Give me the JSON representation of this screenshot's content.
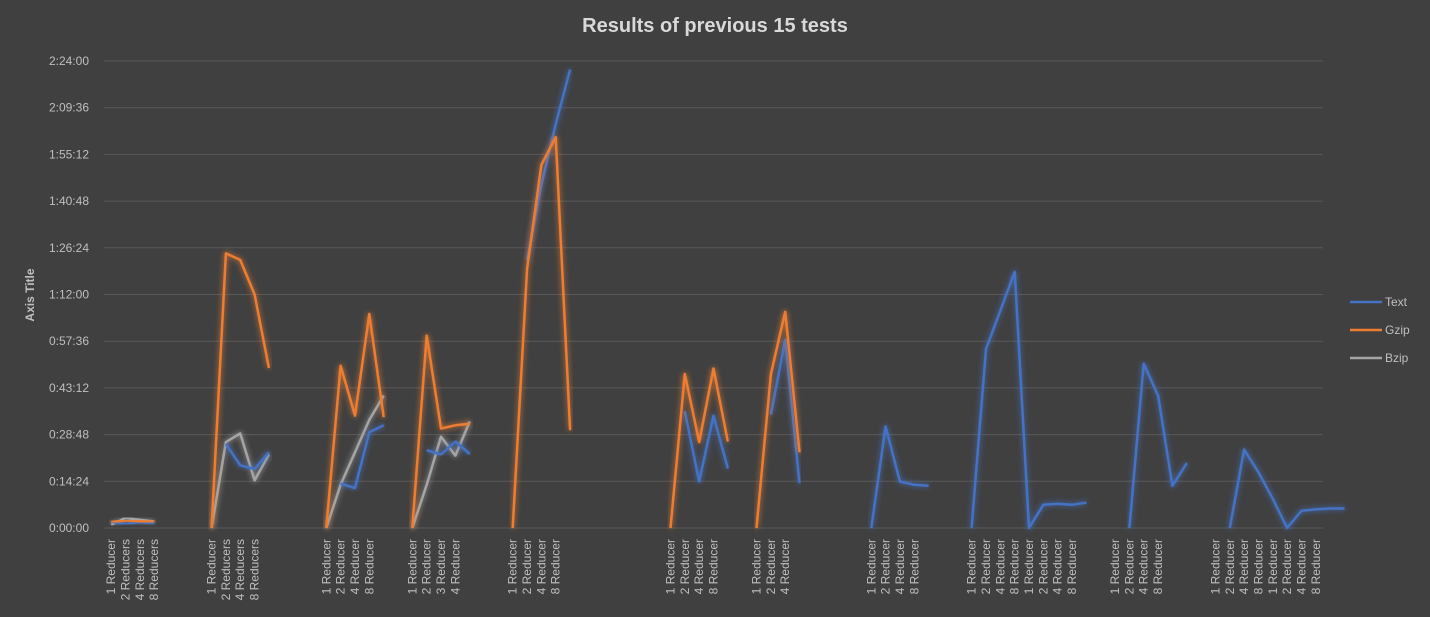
{
  "colors": {
    "background": "#404040",
    "grid": "#595959",
    "text": "#bfbfbf",
    "title": "#d9d9d9"
  },
  "chart_data": {
    "type": "line",
    "title": "Results of previous 15 tests",
    "xlabel": "",
    "ylabel": "Axis Title",
    "y_unit": "h:mm:ss",
    "y_ticks": [
      "0:00:00",
      "0:14:24",
      "0:28:48",
      "0:43:12",
      "0:57:36",
      "1:12:00",
      "1:26:24",
      "1:40:48",
      "1:55:12",
      "2:09:36",
      "2:24:00"
    ],
    "ylim_seconds": [
      0,
      8640
    ],
    "grid": true,
    "legend_position": "right",
    "series": [
      {
        "name": "Text",
        "color": "#4472c4"
      },
      {
        "name": "Gzip",
        "color": "#ed7d31"
      },
      {
        "name": "Bzip",
        "color": "#a5a5a5"
      }
    ],
    "categories": [
      "1 Reducer",
      "2 Reducers",
      "4 Reducers",
      "8 Reducers",
      "",
      "",
      "",
      "1 Reducer",
      "2 Reducers",
      "4 Reducers",
      "8 Reducers",
      "",
      "",
      "",
      "",
      "1 Reducer",
      "2 Reducer",
      "4 Reducer",
      "8 Reducer",
      "",
      "",
      "1 Reducer",
      "2 Reducer",
      "3 Reducer",
      "4 Reducer",
      "",
      "",
      "",
      "1 Reducer",
      "2 Reducer",
      "4 Reducer",
      "8 Reducer",
      "",
      "",
      "",
      "",
      "",
      "",
      "",
      "1 Reducer",
      "2 Reducer",
      "4 Reducer",
      "8 Reducer",
      "",
      "",
      "1 Reducer",
      "2 Reducer",
      "4 Reducer",
      "",
      "",
      "",
      "",
      "",
      "1 Reducer",
      "2 Reducer",
      "4 Reducer",
      "8 Reducer",
      "",
      "",
      "",
      "1 Reducer",
      "2 Reducer",
      "4 Reducer",
      "8 Reducer",
      "1 Reducer",
      "2 Reducer",
      "4 Reducer",
      "8 Reducer",
      "",
      "",
      "1 Reducer",
      "2 Reducer",
      "4 Reducer",
      "8 Reducer",
      "",
      "",
      "",
      "1 Reducer",
      "2 Reducer",
      "4 Reducer",
      "8 Reducer",
      "1 Reducer",
      "2 Reducer",
      "4 Reducer",
      "8 Reducer"
    ],
    "groups": [
      {
        "start": 0,
        "text": [
          120,
          70,
          110,
          95
        ],
        "gzip": [
          110,
          140,
          125,
          115
        ],
        "bzip": [
          60,
          185,
          150,
          120
        ]
      },
      {
        "start": 7,
        "text": [
          null,
          1555,
          1160,
          1090,
          1400
        ],
        "gzip": [
          0,
          5080,
          4960,
          4320,
          2960
        ],
        "bzip": [
          0,
          1590,
          1750,
          880,
          1360
        ]
      },
      {
        "start": 15,
        "text": [
          null,
          820,
          740,
          1770,
          1900
        ],
        "gzip": [
          0,
          3000,
          2080,
          3960,
          2050
        ],
        "bzip": [
          0,
          800,
          1400,
          2000,
          2450
        ]
      },
      {
        "start": 21,
        "text": [
          null,
          1440,
          1360,
          1600,
          1370
        ],
        "gzip": [
          0,
          3560,
          1840,
          1900,
          1930
        ],
        "bzip": [
          0,
          800,
          1690,
          1340,
          1970
        ]
      },
      {
        "start": 28,
        "text": [
          null,
          4950,
          6350,
          7470,
          8480
        ],
        "gzip": [
          0,
          4800,
          6720,
          7230,
          1810
        ],
        "bzip": []
      },
      {
        "start": 39,
        "text": [
          null,
          2160,
          860,
          2080,
          1100
        ],
        "gzip": [
          0,
          2850,
          1590,
          2950,
          1600
        ],
        "bzip": []
      },
      {
        "start": 45,
        "text": [
          null,
          2100,
          3480,
          830
        ],
        "gzip": [
          0,
          2850,
          4000,
          1400
        ],
        "bzip": []
      },
      {
        "start": 53,
        "text": [
          0,
          1880,
          860,
          800,
          780
        ],
        "gzip": [],
        "bzip": []
      },
      {
        "start": 60,
        "text": [
          0,
          3310,
          4020,
          4740,
          0,
          430,
          450,
          430,
          470
        ],
        "gzip": [],
        "bzip": []
      },
      {
        "start": 71,
        "text": [
          0,
          3040,
          2450,
          780,
          1200
        ],
        "gzip": [],
        "bzip": []
      },
      {
        "start": 78,
        "text": [
          0,
          1450,
          1030,
          540,
          0,
          320,
          345,
          360,
          360
        ],
        "gzip": [],
        "bzip": []
      }
    ]
  }
}
